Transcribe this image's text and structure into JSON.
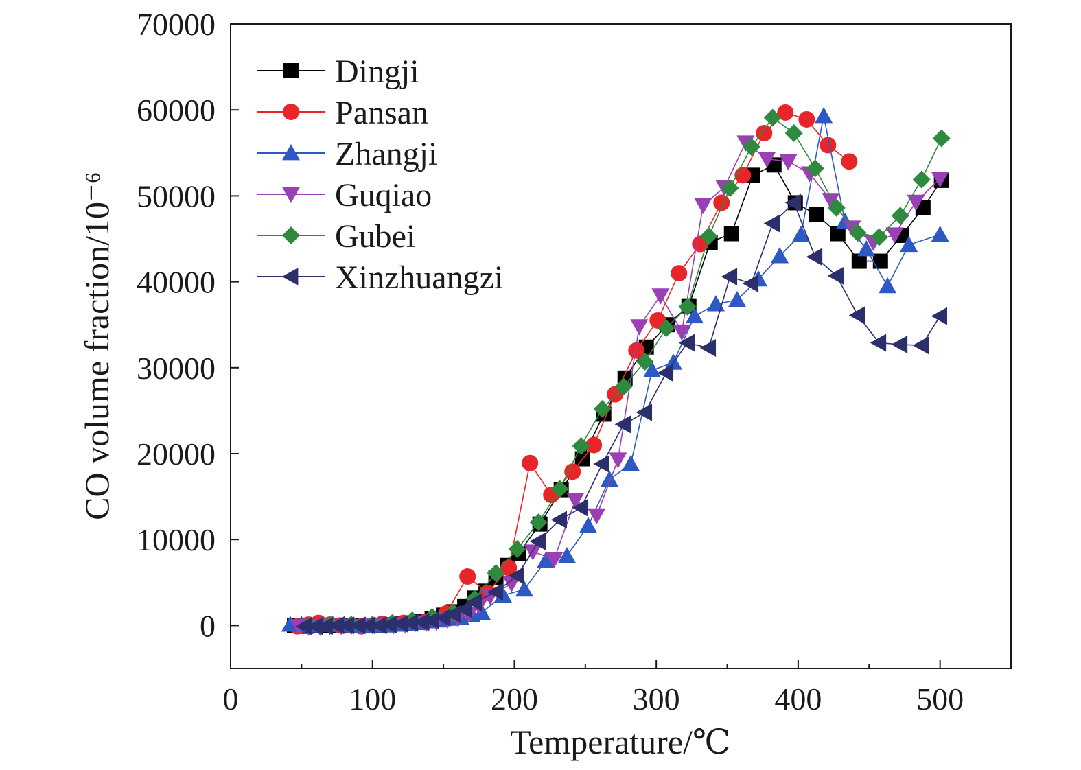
{
  "chart_data": {
    "type": "line",
    "title": "",
    "xlabel": "Temperature/℃",
    "ylabel": "CO volume fraction/10⁻⁶",
    "xlim": [
      0,
      550
    ],
    "ylim": [
      -5000,
      70000
    ],
    "x_ticks": [
      "0",
      "100",
      "200",
      "300",
      "400",
      "500"
    ],
    "y_ticks": [
      "0",
      "10000",
      "20000",
      "30000",
      "40000",
      "50000",
      "60000",
      "70000"
    ],
    "grid": false,
    "legend_position": "top-left",
    "series": [
      {
        "name": "Dingji",
        "color": "#000000",
        "marker": "square",
        "points": [
          [
            45,
            0
          ],
          [
            53,
            -100
          ],
          [
            60,
            0
          ],
          [
            68,
            0
          ],
          [
            75,
            0
          ],
          [
            82,
            0
          ],
          [
            90,
            0
          ],
          [
            97,
            0
          ],
          [
            105,
            0
          ],
          [
            112,
            100
          ],
          [
            120,
            200
          ],
          [
            127,
            300
          ],
          [
            135,
            500
          ],
          [
            142,
            800
          ],
          [
            150,
            1200
          ],
          [
            157,
            1600
          ],
          [
            165,
            2200
          ],
          [
            172,
            3200
          ],
          [
            180,
            4000
          ],
          [
            187,
            5600
          ],
          [
            195,
            7000
          ],
          [
            203,
            8400
          ],
          [
            218,
            11800
          ],
          [
            233,
            15800
          ],
          [
            248,
            19400
          ],
          [
            263,
            24600
          ],
          [
            278,
            28800
          ],
          [
            293,
            32400
          ],
          [
            308,
            35000
          ],
          [
            323,
            37200
          ],
          [
            338,
            44600
          ],
          [
            353,
            45600
          ],
          [
            368,
            52400
          ],
          [
            383,
            53600
          ],
          [
            398,
            49200
          ],
          [
            413,
            47800
          ],
          [
            428,
            45600
          ],
          [
            443,
            42400
          ],
          [
            458,
            42400
          ],
          [
            473,
            45400
          ],
          [
            488,
            48600
          ],
          [
            501,
            51800
          ]
        ]
      },
      {
        "name": "Pansan",
        "color": "#e8262a",
        "marker": "circle",
        "points": [
          [
            47,
            -100
          ],
          [
            55,
            100
          ],
          [
            62,
            300
          ],
          [
            70,
            100
          ],
          [
            77,
            0
          ],
          [
            85,
            0
          ],
          [
            92,
            -100
          ],
          [
            100,
            0
          ],
          [
            107,
            200
          ],
          [
            115,
            200
          ],
          [
            122,
            300
          ],
          [
            137,
            400
          ],
          [
            152,
            1400
          ],
          [
            167,
            5700
          ],
          [
            181,
            3800
          ],
          [
            196,
            6700
          ],
          [
            211,
            18900
          ],
          [
            226,
            15200
          ],
          [
            241,
            17900
          ],
          [
            256,
            21000
          ],
          [
            271,
            26900
          ],
          [
            286,
            32000
          ],
          [
            301,
            35500
          ],
          [
            316,
            41000
          ],
          [
            331,
            44400
          ],
          [
            346,
            49200
          ],
          [
            361,
            52400
          ],
          [
            376,
            57300
          ],
          [
            391,
            59700
          ],
          [
            406,
            58900
          ],
          [
            421,
            55900
          ],
          [
            436,
            54000
          ]
        ]
      },
      {
        "name": "Zhangji",
        "color": "#2c59c3",
        "marker": "triangle-up",
        "points": [
          [
            42,
            100
          ],
          [
            50,
            100
          ],
          [
            57,
            0
          ],
          [
            65,
            100
          ],
          [
            72,
            100
          ],
          [
            80,
            100
          ],
          [
            87,
            0
          ],
          [
            95,
            0
          ],
          [
            102,
            0
          ],
          [
            110,
            0
          ],
          [
            117,
            100
          ],
          [
            125,
            200
          ],
          [
            132,
            300
          ],
          [
            140,
            500
          ],
          [
            147,
            600
          ],
          [
            155,
            800
          ],
          [
            162,
            900
          ],
          [
            170,
            1200
          ],
          [
            177,
            1500
          ],
          [
            192,
            3500
          ],
          [
            207,
            4200
          ],
          [
            222,
            7500
          ],
          [
            237,
            8100
          ],
          [
            252,
            11600
          ],
          [
            267,
            17000
          ],
          [
            282,
            18800
          ],
          [
            297,
            29700
          ],
          [
            312,
            30600
          ],
          [
            327,
            36000
          ],
          [
            342,
            37400
          ],
          [
            357,
            37900
          ],
          [
            372,
            40300
          ],
          [
            387,
            43000
          ],
          [
            402,
            45500
          ],
          [
            418,
            59300
          ],
          [
            433,
            47000
          ],
          [
            448,
            43800
          ],
          [
            463,
            39500
          ],
          [
            478,
            44300
          ],
          [
            500,
            45500
          ]
        ]
      },
      {
        "name": "Guqiao",
        "color": "#9b3fb5",
        "marker": "triangle-down",
        "points": [
          [
            48,
            -100
          ],
          [
            55,
            -200
          ],
          [
            63,
            -200
          ],
          [
            70,
            -100
          ],
          [
            78,
            -100
          ],
          [
            85,
            -100
          ],
          [
            93,
            -100
          ],
          [
            100,
            0
          ],
          [
            108,
            0
          ],
          [
            115,
            0
          ],
          [
            123,
            100
          ],
          [
            130,
            200
          ],
          [
            138,
            300
          ],
          [
            145,
            400
          ],
          [
            153,
            700
          ],
          [
            160,
            900
          ],
          [
            168,
            1300
          ],
          [
            175,
            2300
          ],
          [
            183,
            3400
          ],
          [
            198,
            4900
          ],
          [
            213,
            8600
          ],
          [
            228,
            7700
          ],
          [
            243,
            14600
          ],
          [
            258,
            12800
          ],
          [
            273,
            19300
          ],
          [
            288,
            34800
          ],
          [
            303,
            38400
          ],
          [
            318,
            34200
          ],
          [
            333,
            48900
          ],
          [
            348,
            51000
          ],
          [
            363,
            56200
          ],
          [
            378,
            54300
          ],
          [
            393,
            54000
          ],
          [
            408,
            52600
          ],
          [
            423,
            49500
          ],
          [
            438,
            46300
          ],
          [
            453,
            44600
          ],
          [
            468,
            45500
          ],
          [
            483,
            49300
          ],
          [
            500,
            52000
          ]
        ]
      },
      {
        "name": "Gubei",
        "color": "#2e8b3d",
        "marker": "diamond",
        "points": [
          [
            55,
            0
          ],
          [
            70,
            100
          ],
          [
            85,
            100
          ],
          [
            100,
            100
          ],
          [
            114,
            300
          ],
          [
            128,
            600
          ],
          [
            142,
            1000
          ],
          [
            157,
            1500
          ],
          [
            172,
            3100
          ],
          [
            187,
            6100
          ],
          [
            202,
            8900
          ],
          [
            217,
            12000
          ],
          [
            232,
            15900
          ],
          [
            247,
            20900
          ],
          [
            262,
            25200
          ],
          [
            277,
            27800
          ],
          [
            292,
            30700
          ],
          [
            307,
            34600
          ],
          [
            322,
            37100
          ],
          [
            337,
            45300
          ],
          [
            352,
            50900
          ],
          [
            367,
            55700
          ],
          [
            382,
            59100
          ],
          [
            397,
            57300
          ],
          [
            412,
            53200
          ],
          [
            427,
            48600
          ],
          [
            442,
            45700
          ],
          [
            457,
            45200
          ],
          [
            472,
            47700
          ],
          [
            487,
            51900
          ],
          [
            501,
            56700
          ]
        ]
      },
      {
        "name": "Xinzhuangzi",
        "color": "#2b2f6b",
        "marker": "triangle-left",
        "points": [
          [
            52,
            -100
          ],
          [
            60,
            -100
          ],
          [
            67,
            -100
          ],
          [
            75,
            0
          ],
          [
            82,
            0
          ],
          [
            90,
            0
          ],
          [
            97,
            0
          ],
          [
            105,
            0
          ],
          [
            112,
            100
          ],
          [
            120,
            200
          ],
          [
            127,
            300
          ],
          [
            135,
            400
          ],
          [
            142,
            600
          ],
          [
            150,
            900
          ],
          [
            157,
            1300
          ],
          [
            165,
            1900
          ],
          [
            172,
            2700
          ],
          [
            187,
            3900
          ],
          [
            202,
            5800
          ],
          [
            217,
            9800
          ],
          [
            232,
            12300
          ],
          [
            247,
            13700
          ],
          [
            262,
            18800
          ],
          [
            277,
            23400
          ],
          [
            292,
            24800
          ],
          [
            307,
            29400
          ],
          [
            322,
            32900
          ],
          [
            337,
            32300
          ],
          [
            352,
            40600
          ],
          [
            367,
            39800
          ],
          [
            382,
            46800
          ],
          [
            397,
            49200
          ],
          [
            412,
            42900
          ],
          [
            427,
            40700
          ],
          [
            442,
            36100
          ],
          [
            457,
            32900
          ],
          [
            472,
            32700
          ],
          [
            487,
            32600
          ],
          [
            500,
            36000
          ]
        ]
      }
    ]
  }
}
